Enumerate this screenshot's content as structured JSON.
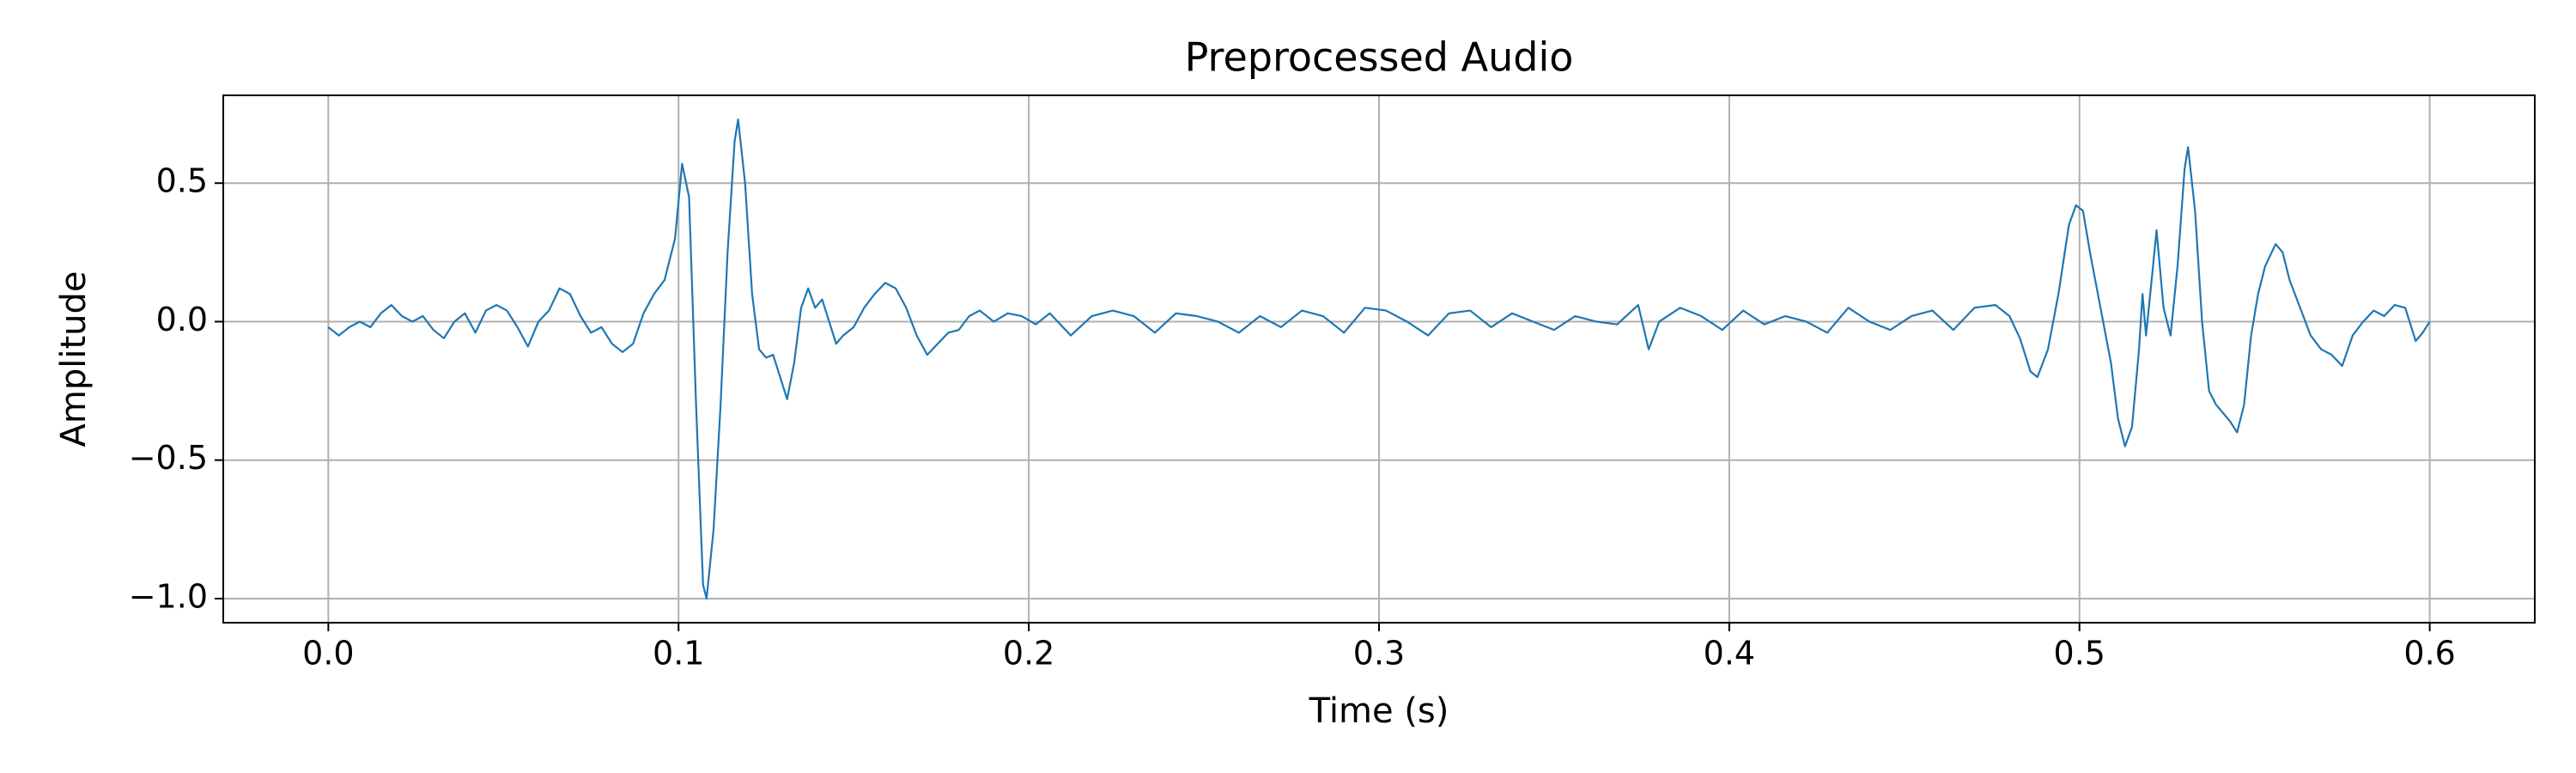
{
  "chart_data": {
    "type": "line",
    "title": "Preprocessed Audio",
    "xlabel": "Time (s)",
    "ylabel": "Amplitude",
    "color": "#1f77b4",
    "grid": true,
    "xlim": [
      -0.03,
      0.63
    ],
    "ylim": [
      -1.087,
      0.817
    ],
    "xticks": [
      {
        "value": 0,
        "label": "0.0"
      },
      0.1,
      0.2,
      0.3,
      0.4,
      0.5,
      0.6
    ],
    "yticks": [
      {
        "value": -1,
        "label": "−1.0"
      },
      {
        "value": -0.5,
        "label": "−0.5"
      },
      {
        "value": 0,
        "label": "0.0"
      },
      0.5
    ],
    "x": [
      0.0,
      0.003,
      0.006,
      0.009,
      0.012,
      0.015,
      0.018,
      0.021,
      0.024,
      0.027,
      0.03,
      0.033,
      0.036,
      0.039,
      0.042,
      0.045,
      0.048,
      0.051,
      0.054,
      0.057,
      0.06,
      0.063,
      0.066,
      0.069,
      0.072,
      0.075,
      0.078,
      0.081,
      0.084,
      0.087,
      0.09,
      0.093,
      0.096,
      0.099,
      0.101,
      0.103,
      0.105,
      0.107,
      0.108,
      0.11,
      0.112,
      0.114,
      0.116,
      0.117,
      0.119,
      0.121,
      0.123,
      0.125,
      0.127,
      0.129,
      0.131,
      0.133,
      0.135,
      0.137,
      0.139,
      0.141,
      0.143,
      0.145,
      0.147,
      0.15,
      0.153,
      0.156,
      0.159,
      0.162,
      0.165,
      0.168,
      0.171,
      0.174,
      0.177,
      0.18,
      0.183,
      0.186,
      0.19,
      0.194,
      0.198,
      0.202,
      0.206,
      0.212,
      0.218,
      0.224,
      0.23,
      0.236,
      0.242,
      0.248,
      0.254,
      0.26,
      0.266,
      0.272,
      0.278,
      0.284,
      0.29,
      0.296,
      0.302,
      0.308,
      0.314,
      0.32,
      0.326,
      0.332,
      0.338,
      0.344,
      0.35,
      0.356,
      0.362,
      0.368,
      0.374,
      0.377,
      0.38,
      0.386,
      0.392,
      0.398,
      0.404,
      0.41,
      0.416,
      0.422,
      0.428,
      0.434,
      0.44,
      0.446,
      0.452,
      0.458,
      0.464,
      0.47,
      0.476,
      0.48,
      0.483,
      0.486,
      0.488,
      0.491,
      0.494,
      0.497,
      0.499,
      0.501,
      0.503,
      0.506,
      0.509,
      0.511,
      0.513,
      0.515,
      0.517,
      0.518,
      0.519,
      0.521,
      0.522,
      0.524,
      0.526,
      0.528,
      0.53,
      0.531,
      0.533,
      0.535,
      0.537,
      0.539,
      0.541,
      0.543,
      0.545,
      0.547,
      0.549,
      0.551,
      0.553,
      0.556,
      0.558,
      0.56,
      0.563,
      0.566,
      0.569,
      0.572,
      0.575,
      0.578,
      0.581,
      0.584,
      0.587,
      0.59,
      0.593,
      0.596,
      0.598,
      0.6
    ],
    "values": [
      -0.02,
      -0.05,
      -0.02,
      0.0,
      -0.02,
      0.03,
      0.06,
      0.02,
      0.0,
      0.02,
      -0.03,
      -0.06,
      0.0,
      0.03,
      -0.04,
      0.04,
      0.06,
      0.04,
      -0.02,
      -0.09,
      0.0,
      0.04,
      0.12,
      0.1,
      0.02,
      -0.04,
      -0.02,
      -0.08,
      -0.11,
      -0.08,
      0.03,
      0.1,
      0.15,
      0.3,
      0.57,
      0.45,
      -0.3,
      -0.95,
      -1.0,
      -0.75,
      -0.3,
      0.25,
      0.65,
      0.73,
      0.5,
      0.1,
      -0.1,
      -0.13,
      -0.12,
      -0.2,
      -0.28,
      -0.15,
      0.05,
      0.12,
      0.05,
      0.08,
      0.0,
      -0.08,
      -0.05,
      -0.02,
      0.05,
      0.1,
      0.14,
      0.12,
      0.05,
      -0.05,
      -0.12,
      -0.08,
      -0.04,
      -0.03,
      0.02,
      0.04,
      0.0,
      0.03,
      0.02,
      -0.01,
      0.03,
      -0.05,
      0.02,
      0.04,
      0.02,
      -0.04,
      0.03,
      0.02,
      0.0,
      -0.04,
      0.02,
      -0.02,
      0.04,
      0.02,
      -0.04,
      0.05,
      0.04,
      0.0,
      -0.05,
      0.03,
      0.04,
      -0.02,
      0.03,
      0.0,
      -0.03,
      0.02,
      0.0,
      -0.01,
      0.06,
      -0.1,
      0.0,
      0.05,
      0.02,
      -0.03,
      0.04,
      -0.01,
      0.02,
      0.0,
      -0.04,
      0.05,
      0.0,
      -0.03,
      0.02,
      0.04,
      -0.03,
      0.05,
      0.06,
      0.02,
      -0.06,
      -0.18,
      -0.2,
      -0.1,
      0.1,
      0.35,
      0.42,
      0.4,
      0.25,
      0.05,
      -0.15,
      -0.35,
      -0.45,
      -0.38,
      -0.1,
      0.1,
      -0.05,
      0.2,
      0.33,
      0.05,
      -0.05,
      0.2,
      0.55,
      0.63,
      0.4,
      0.0,
      -0.25,
      -0.3,
      -0.33,
      -0.36,
      -0.4,
      -0.3,
      -0.05,
      0.1,
      0.2,
      0.28,
      0.25,
      0.15,
      0.05,
      -0.05,
      -0.1,
      -0.12,
      -0.16,
      -0.05,
      0.0,
      0.04,
      0.02,
      0.06,
      0.05,
      -0.07,
      -0.04,
      0.0
    ]
  }
}
